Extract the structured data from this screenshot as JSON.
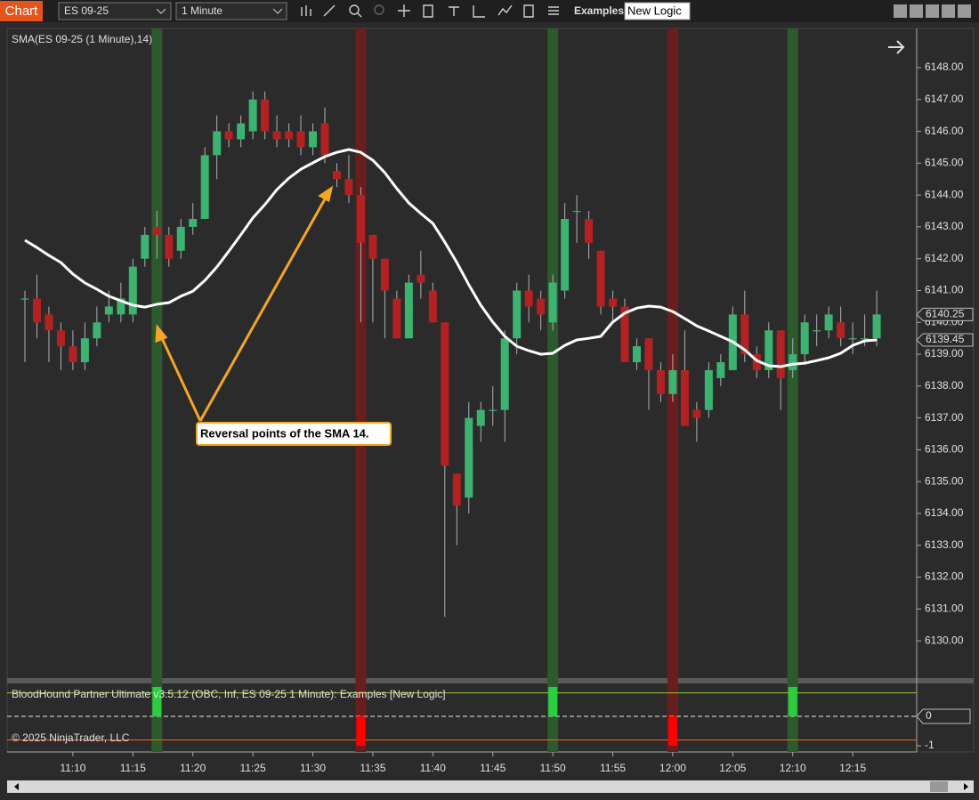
{
  "toolbar": {
    "tab": "Chart",
    "instrument": "ES 09-25",
    "interval": "1 Minute",
    "strategy_label": "Examples",
    "strategy_value": "New Logic"
  },
  "footer": "© 2025 NinjaTrader, LLC",
  "chart_data": [
    {
      "type": "candlestick",
      "title": "SMA(ES 09-25 (1 Minute),14)",
      "categories": [
        null,
        null,
        null,
        null,
        "11:10",
        null,
        null,
        null,
        null,
        "11:15",
        null,
        null,
        null,
        null,
        "11:20",
        null,
        null,
        null,
        null,
        "11:25",
        null,
        null,
        null,
        null,
        "11:30",
        null,
        null,
        null,
        null,
        "11:35",
        null,
        null,
        null,
        null,
        "11:40",
        null,
        null,
        null,
        null,
        "11:45",
        null,
        null,
        null,
        null,
        "11:50",
        null,
        null,
        null,
        null,
        "11:55",
        null,
        null,
        null,
        null,
        "12:00",
        null,
        null,
        null,
        null,
        "12:05",
        null,
        null,
        null,
        null,
        "12:10",
        null,
        null,
        null,
        null,
        "12:15",
        null,
        null
      ],
      "open": [
        6140.75,
        6140.75,
        6140.25,
        6139.75,
        6139.25,
        6138.75,
        6139.5,
        6140.25,
        6140.25,
        6140.25,
        6142,
        6143,
        6142.75,
        6142.25,
        6143,
        6143.25,
        6145.25,
        6146,
        6145.75,
        6146,
        6147,
        6146,
        6146,
        6146,
        6145.5,
        6146.25,
        6144.75,
        6144.5,
        6144,
        6142.75,
        6142,
        6140.75,
        6139.5,
        6141.5,
        6141,
        6140,
        6135.25,
        6134.5,
        6136.75,
        6137.25,
        6137.25,
        6139.5,
        6141,
        6140.75,
        6140,
        6141,
        6143.5,
        6143.25,
        6142.25,
        6140.75,
        6140.5,
        6138.75,
        6139.5,
        6138.5,
        6137.75,
        6138.5,
        6137.25,
        6137.25,
        6138.25,
        6138.5,
        6140.25,
        6139,
        6138.5,
        6139.75,
        6138.5,
        6139,
        6139.75,
        6139.75,
        6140,
        6139.5,
        6139.5,
        6139.5
      ],
      "high": [
        6141,
        6141.5,
        6140.5,
        6140,
        6139.75,
        6140,
        6140.5,
        6141,
        6141.25,
        6142,
        6143,
        6143.5,
        6143,
        6143.25,
        6143.75,
        6145.5,
        6146.5,
        6146.25,
        6146.5,
        6147.25,
        6147.25,
        6146.5,
        6146.25,
        6146.5,
        6146.25,
        6146.75,
        6145,
        6145.25,
        6144.25,
        6142.75,
        6142,
        6141,
        6141.5,
        6142.25,
        6141.25,
        6140,
        6135.25,
        6137.5,
        6137.5,
        6138,
        6139.75,
        6141.25,
        6141.5,
        6141,
        6141.5,
        6143.75,
        6144,
        6143.5,
        6142.25,
        6141,
        6140.75,
        6139.5,
        6139.5,
        6138.75,
        6139,
        6139.75,
        6137.5,
        6138.75,
        6139,
        6140.5,
        6141,
        6139.25,
        6140,
        6139.75,
        6139.5,
        6140.25,
        6140.25,
        6140.5,
        6140.5,
        6140,
        6140.25,
        6141
      ],
      "low": [
        6138.75,
        6139.5,
        6138.75,
        6138.5,
        6138.5,
        6138.5,
        6139.25,
        6140,
        6140,
        6140,
        6141.75,
        6142,
        6141.75,
        6142,
        6142.75,
        6143.25,
        6144.5,
        6145.5,
        6145.5,
        6145.75,
        6145.75,
        6145.5,
        6145.5,
        6145.25,
        6145.25,
        6145,
        6144.25,
        6143.75,
        6140,
        6140,
        6139.5,
        6139.5,
        6139.5,
        6140.75,
        6140,
        6130.75,
        6133,
        6134,
        6136.25,
        6136.75,
        6136.25,
        6139,
        6140,
        6139.75,
        6139.75,
        6140.75,
        6142.5,
        6142,
        6140.25,
        6140,
        6138.75,
        6138.5,
        6137.25,
        6137.5,
        6137.5,
        6136.75,
        6136.25,
        6137,
        6138,
        6138.5,
        6138.75,
        6138.25,
        6138.25,
        6137.25,
        6138.25,
        6138.75,
        6139.25,
        6139.5,
        6139.25,
        6139,
        6139.25,
        6139.25
      ],
      "close": [
        6140.75,
        6140,
        6139.75,
        6139.25,
        6138.75,
        6139.5,
        6140,
        6140.5,
        6140.75,
        6141.75,
        6142.75,
        6142.75,
        6142,
        6143,
        6143.25,
        6145.25,
        6146,
        6145.75,
        6146.25,
        6147,
        6146,
        6145.75,
        6145.75,
        6145.5,
        6146,
        6145.25,
        6144.5,
        6144,
        6142.5,
        6142,
        6141,
        6139.5,
        6141.25,
        6141.25,
        6140,
        6135.5,
        6134.25,
        6137,
        6137.25,
        6137.25,
        6139.5,
        6141,
        6140.5,
        6140.25,
        6141.25,
        6143.25,
        6143.5,
        6142.5,
        6140.5,
        6140.5,
        6138.75,
        6139.25,
        6138.5,
        6137.75,
        6138.5,
        6136.75,
        6137,
        6138.5,
        6138.75,
        6140.25,
        6139,
        6138.5,
        6139.75,
        6138.25,
        6139,
        6140,
        6139.75,
        6140.25,
        6139.5,
        6139.5,
        6139.5,
        6140.25
      ],
      "up_color": "#3cb371",
      "down_color": "#b22222",
      "wick_color": "#b0b0b0",
      "overlay": {
        "type": "line",
        "color": "#ffffff",
        "values": [
          6142.58,
          6142.35,
          6142.1,
          6141.88,
          6141.52,
          6141.24,
          6141.04,
          6140.82,
          6140.68,
          6140.54,
          6140.48,
          6140.57,
          6140.62,
          6140.82,
          6140.98,
          6141.32,
          6141.74,
          6142.24,
          6142.75,
          6143.28,
          6143.7,
          6144.17,
          6144.53,
          6144.81,
          6145.01,
          6145.21,
          6145.34,
          6145.43,
          6145.34,
          6145.09,
          6144.7,
          6144.2,
          6143.75,
          6143.42,
          6143.11,
          6142.52,
          6141.88,
          6141.18,
          6140.54,
          6140.01,
          6139.56,
          6139.25,
          6139.11,
          6139,
          6139.03,
          6139.28,
          6139.45,
          6139.5,
          6139.56,
          6140.01,
          6140.29,
          6140.45,
          6140.51,
          6140.48,
          6140.34,
          6140.12,
          6139.89,
          6139.73,
          6139.56,
          6139.39,
          6139.14,
          6138.8,
          6138.64,
          6138.61,
          6138.69,
          6138.72,
          6138.8,
          6138.89,
          6139.03,
          6139.28,
          6139.42,
          6139.45
        ]
      },
      "price_markers": [
        6140.25,
        6139.45
      ],
      "ylim": [
        6128.83,
        6149.23
      ],
      "yticks": [
        {
          "value": 6130,
          "label": "6130.00"
        },
        {
          "value": 6131,
          "label": "6131.00"
        },
        {
          "value": 6132,
          "label": "6132.00"
        },
        {
          "value": 6133,
          "label": "6133.00"
        },
        {
          "value": 6134,
          "label": "6134.00"
        },
        {
          "value": 6135,
          "label": "6135.00"
        },
        {
          "value": 6136,
          "label": "6136.00"
        },
        {
          "value": 6137,
          "label": "6137.00"
        },
        {
          "value": 6138,
          "label": "6138.00"
        },
        {
          "value": 6139,
          "label": "6139.00"
        },
        {
          "value": 6140,
          "label": "6140.00"
        },
        {
          "value": 6141,
          "label": "6141.00"
        },
        {
          "value": 6142,
          "label": "6142.00"
        },
        {
          "value": 6143,
          "label": "6143.00"
        },
        {
          "value": 6144,
          "label": "6144.00"
        },
        {
          "value": 6145,
          "label": "6145.00"
        },
        {
          "value": 6146,
          "label": "6146.00"
        },
        {
          "value": 6147,
          "label": "6147.00"
        },
        {
          "value": 6148,
          "label": "6148.00"
        }
      ],
      "annotation": {
        "text": "Reversal points of the SMA 14.",
        "color": "#f5a623"
      }
    },
    {
      "type": "bar",
      "title": "BloodHound Partner Ultimate v3.5.12 (OBC, Inf, ES 09-25 1 Minute): Examples  [New Logic]",
      "values": [
        0,
        0,
        0,
        0,
        0,
        0,
        0,
        0,
        0,
        0,
        0,
        1,
        0,
        0,
        0,
        0,
        0,
        0,
        0,
        0,
        0,
        0,
        0,
        0,
        0,
        0,
        0,
        0,
        -1,
        0,
        0,
        0,
        0,
        0,
        0,
        0,
        0,
        0,
        0,
        0,
        0,
        0,
        0,
        0,
        1,
        0,
        0,
        0,
        0,
        0,
        0,
        0,
        0,
        0,
        -1,
        0,
        0,
        0,
        0,
        0,
        0,
        0,
        0,
        0,
        1,
        0,
        0,
        0,
        0,
        0,
        0,
        0
      ],
      "up_color": "#2ecc40",
      "down_color": "#ff0000",
      "up_band_color": "#2c5a2c",
      "down_band_color": "#6a1d1d",
      "levels": [
        {
          "value": 0.8,
          "color": "#9acd32"
        },
        {
          "value": 0,
          "color": "#aaaaaa",
          "dashed": true
        },
        {
          "value": -0.8,
          "color": "#ff5a1f"
        }
      ],
      "ylim": [
        -1.21,
        1.12
      ],
      "yticks": [
        -1,
        0
      ]
    }
  ]
}
